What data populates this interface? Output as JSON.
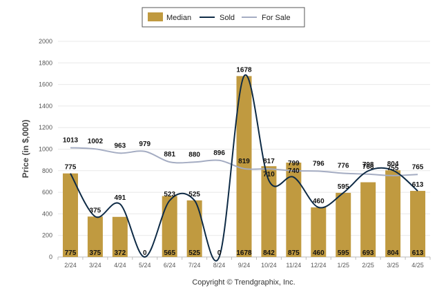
{
  "chart_data": {
    "type": "bar",
    "categories": [
      "2/24",
      "3/24",
      "4/24",
      "5/24",
      "6/24",
      "7/24",
      "8/24",
      "9/24",
      "10/24",
      "11/24",
      "12/24",
      "1/25",
      "2/25",
      "3/25",
      "4/25"
    ],
    "series": [
      {
        "name": "Median",
        "type": "bar",
        "values": [
          775,
          375,
          372,
          0,
          565,
          525,
          0,
          1678,
          842,
          875,
          460,
          595,
          693,
          804,
          613
        ]
      },
      {
        "name": "Sold",
        "type": "line",
        "values": [
          775,
          375,
          491,
          0,
          523,
          525,
          0,
          1678,
          710,
          740,
          460,
          595,
          798,
          804,
          613
        ]
      },
      {
        "name": "For Sale",
        "type": "line",
        "values": [
          1013,
          1002,
          963,
          979,
          881,
          880,
          896,
          819,
          817,
          799,
          796,
          776,
          768,
          755,
          765
        ]
      }
    ],
    "ylabel": "Price (in $,000)",
    "xlabel": "",
    "ylim": [
      0,
      2000
    ],
    "yticks": [
      0,
      200,
      400,
      600,
      800,
      1000,
      1200,
      1400,
      1600,
      1800,
      2000
    ],
    "grid": true,
    "legend_position": "top-center",
    "colors": {
      "Median": "#c09a40",
      "Sold": "#0d2a45",
      "For Sale": "#a4acc2"
    },
    "footer": "Copyright © Trendgraphix, Inc."
  }
}
